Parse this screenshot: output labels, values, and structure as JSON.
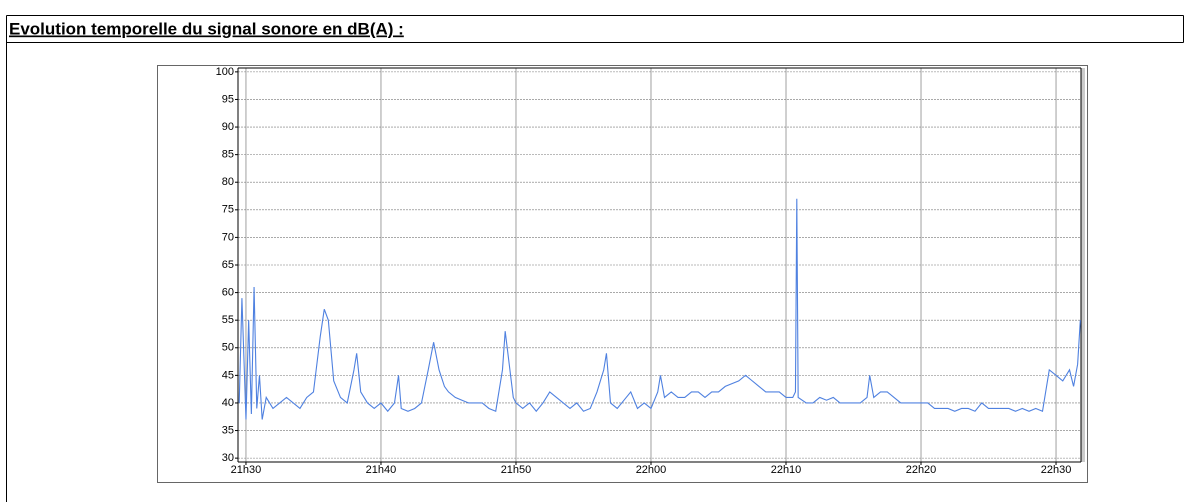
{
  "chart_data": {
    "type": "line",
    "title": "Evolution temporelle du signal sonore en dB(A) :",
    "x": [
      1289.5,
      1289.7,
      1290,
      1290.2,
      1290.4,
      1290.6,
      1290.8,
      1291,
      1291.2,
      1291.5,
      1292,
      1292.5,
      1293,
      1293.5,
      1294,
      1294.5,
      1295,
      1295.5,
      1295.8,
      1296.1,
      1296.5,
      1297,
      1297.5,
      1298,
      1298.2,
      1298.5,
      1299,
      1299.5,
      1300,
      1300.5,
      1301,
      1301.3,
      1301.5,
      1302,
      1302.5,
      1303,
      1303.5,
      1303.9,
      1304.3,
      1304.7,
      1305,
      1305.5,
      1306,
      1306.5,
      1307,
      1307.5,
      1308,
      1308.5,
      1309,
      1309.2,
      1309.5,
      1309.8,
      1310,
      1310.5,
      1311,
      1311.5,
      1312,
      1312.5,
      1313,
      1313.5,
      1314,
      1314.5,
      1315,
      1315.5,
      1316,
      1316.5,
      1316.7,
      1317,
      1317.5,
      1318,
      1318.5,
      1319,
      1319.5,
      1320,
      1320.5,
      1320.7,
      1321,
      1321.5,
      1322,
      1322.5,
      1323,
      1323.5,
      1324,
      1324.5,
      1325,
      1325.5,
      1326,
      1326.5,
      1327,
      1327.5,
      1328,
      1328.5,
      1329,
      1329.5,
      1330,
      1330.5,
      1330.7,
      1330.8,
      1330.9,
      1331.5,
      1332,
      1332.5,
      1333,
      1333.5,
      1334,
      1334.5,
      1335,
      1335.5,
      1336,
      1336.2,
      1336.5,
      1337,
      1337.5,
      1338,
      1338.5,
      1339,
      1339.5,
      1340,
      1340.5,
      1341,
      1341.5,
      1342,
      1342.5,
      1343,
      1343.5,
      1344,
      1344.5,
      1345,
      1345.5,
      1346,
      1346.5,
      1347,
      1347.5,
      1348,
      1348.5,
      1349,
      1349.5,
      1350,
      1350.5,
      1351,
      1351.3,
      1351.6,
      1351.8
    ],
    "series": [
      {
        "color": "#4f81e0",
        "values": [
          40,
          59,
          37,
          55,
          38,
          61,
          39,
          45,
          37,
          41,
          39,
          40,
          41,
          40,
          39,
          41,
          42,
          52,
          57,
          55,
          44,
          41,
          40,
          46,
          49,
          42,
          40,
          39,
          40,
          38.5,
          40,
          45,
          39,
          38.5,
          39,
          40,
          46,
          51,
          46,
          43,
          42,
          41,
          40.5,
          40,
          40,
          40,
          39,
          38.5,
          46,
          53,
          47,
          41,
          40,
          39,
          40,
          38.5,
          40,
          42,
          41,
          40,
          39,
          40,
          38.5,
          39,
          42,
          46,
          49,
          40,
          39,
          40.5,
          42,
          39,
          40,
          39,
          42,
          45,
          41,
          42,
          41,
          41,
          42,
          42,
          41,
          42,
          42,
          43,
          43.5,
          44,
          45,
          44,
          43,
          42,
          42,
          42,
          41,
          41,
          42,
          77,
          41,
          40,
          40,
          41,
          40.5,
          41,
          40,
          40,
          40,
          40,
          41,
          45,
          41,
          42,
          42,
          41,
          40,
          40,
          40,
          40,
          40,
          39,
          39,
          39,
          38.5,
          39,
          39,
          38.5,
          40,
          39,
          39,
          39,
          39,
          38.5,
          39,
          38.5,
          39,
          38.5,
          46,
          45,
          44,
          46,
          43,
          47,
          55
        ]
      }
    ],
    "xlim": [
      1289.41,
      1351.85
    ],
    "xticks": [
      {
        "value": 1290,
        "label": "21h30"
      },
      {
        "value": 1300,
        "label": "21h40"
      },
      {
        "value": 1310,
        "label": "21h50"
      },
      {
        "value": 1320,
        "label": "22h00"
      },
      {
        "value": 1330,
        "label": "22h10"
      },
      {
        "value": 1340,
        "label": "22h20"
      },
      {
        "value": 1350,
        "label": "22h30"
      }
    ],
    "ylim": [
      29.3,
      100.7
    ],
    "yticks": [
      30,
      35,
      40,
      45,
      50,
      55,
      60,
      65,
      70,
      75,
      80,
      85,
      90,
      95,
      100
    ],
    "grid": true
  }
}
